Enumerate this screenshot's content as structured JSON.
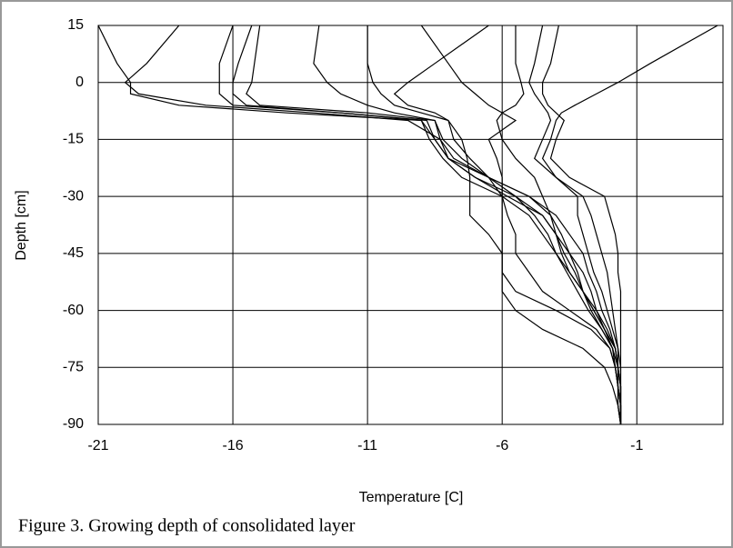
{
  "chart_data": {
    "type": "line",
    "title": "Figure 3. Growing depth of consolidated layer",
    "x_label": "Temperature [C]",
    "y_label": "Depth [cm]",
    "color": "#000000",
    "grid": true,
    "xlim": [
      -21,
      2.2
    ],
    "xticks": [
      -21,
      -16,
      -11,
      -6,
      -1
    ],
    "ylim": [
      -90,
      15
    ],
    "yticks": [
      15,
      0,
      -15,
      -30,
      -45,
      -60,
      -75,
      -90
    ],
    "depths": [
      15,
      5,
      0,
      -3,
      -6,
      -8,
      -10,
      -15,
      -20,
      -25,
      -30,
      -35,
      -40,
      -45,
      -50,
      -55,
      -60,
      -65,
      -70,
      -75,
      -80,
      -85,
      -90
    ],
    "series": [
      {
        "values": [
          -21,
          -20.3,
          -19.8,
          -19.8,
          -18,
          -14,
          -9,
          -8.5,
          -8,
          -6.5,
          -5,
          -4,
          -3.5,
          -3,
          -2.8,
          -2.5,
          -2.3,
          -2,
          -1.8,
          -1.7,
          -1.7,
          -1.6,
          -1.6
        ]
      },
      {
        "values": [
          -18,
          -19.2,
          -20,
          -19.5,
          -17,
          -13,
          -9.5,
          -8.3,
          -8,
          -7,
          -5.5,
          -4.5,
          -4,
          -3.5,
          -3,
          -2.7,
          -2.5,
          -2.2,
          -1.9,
          -1.8,
          -1.7,
          -1.7,
          -1.6
        ]
      },
      {
        "values": [
          -16,
          -16.5,
          -16.5,
          -16.5,
          -16,
          -12,
          -9,
          -8.7,
          -8.2,
          -7.5,
          -6,
          -5,
          -4.5,
          -4,
          -3.5,
          -3,
          -2.7,
          -2.3,
          -1.9,
          -1.8,
          -1.7,
          -1.6,
          -1.6
        ]
      },
      {
        "values": [
          -15.3,
          -15.8,
          -16,
          -16,
          -15.5,
          -12,
          -8.8,
          -8.5,
          -8,
          -7,
          -5.8,
          -4.5,
          -4,
          -3.7,
          -3.3,
          -3,
          -2.6,
          -2.2,
          -1.8,
          -1.7,
          -1.6,
          -1.6,
          -1.6
        ]
      },
      {
        "values": [
          -15,
          -15.2,
          -15.3,
          -15.5,
          -15,
          -11,
          -8.5,
          -8.3,
          -7.8,
          -6.5,
          -5,
          -4.2,
          -3.8,
          -3.5,
          -3.2,
          -3,
          -2.5,
          -2.1,
          -1.8,
          -1.7,
          -1.6,
          -1.6,
          -1.6
        ]
      },
      {
        "values": [
          -12.8,
          -13,
          -12.5,
          -12,
          -11,
          -10,
          -8.5,
          -8.2,
          -7.5,
          -6.5,
          -5.5,
          -4.8,
          -4.3,
          -4,
          -3.6,
          -3.2,
          -2.8,
          -2.3,
          -1.9,
          -1.7,
          -1.7,
          -1.6,
          -1.6
        ]
      },
      {
        "values": [
          -11,
          -11,
          -10.8,
          -10.5,
          -10,
          -9,
          -8,
          -7.8,
          -7.2,
          -6.5,
          -6,
          -5.8,
          -5.5,
          -5.5,
          -5,
          -4.5,
          -3.5,
          -2.5,
          -2,
          -1.8,
          -1.7,
          -1.7,
          -1.6
        ]
      },
      {
        "values": [
          -6.5,
          -8.5,
          -9.5,
          -10,
          -9.5,
          -8.5,
          -8,
          -7.5,
          -7.3,
          -7.2,
          -7.2,
          -7.2,
          -6.5,
          -6,
          -6,
          -5.5,
          -4,
          -2.7,
          -2,
          -1.8,
          -1.7,
          -1.6,
          -1.6
        ]
      },
      {
        "values": [
          -9,
          -8,
          -7.5,
          -7,
          -6.5,
          -6,
          -5.5,
          -6.5,
          -6.2,
          -6,
          -6,
          -6,
          -6,
          -6,
          -6,
          -6,
          -5.5,
          -4.5,
          -3,
          -2.2,
          -1.9,
          -1.7,
          -1.6
        ]
      },
      {
        "values": [
          -5.5,
          -5.5,
          -5.3,
          -5.2,
          -5.5,
          -6,
          -6.2,
          -6,
          -5.5,
          -4.8,
          -4.5,
          -4.2,
          -4,
          -3.8,
          -3.5,
          -3,
          -2.6,
          -2.2,
          -1.8,
          -1.7,
          -1.6,
          -1.6,
          -1.6
        ]
      },
      {
        "values": [
          -4.5,
          -4.8,
          -5,
          -4.8,
          -4.5,
          -4.3,
          -4.2,
          -4.5,
          -4.8,
          -4,
          -3.2,
          -3.2,
          -3,
          -2.8,
          -2.6,
          -2.3,
          -2.1,
          -1.9,
          -1.7,
          -1.7,
          -1.6,
          -1.6,
          -1.6
        ]
      },
      {
        "values": [
          -3.9,
          -4.2,
          -4.5,
          -4.5,
          -4.3,
          -4,
          -3.7,
          -4,
          -4.2,
          -3.5,
          -2.2,
          -2,
          -1.8,
          -1.7,
          -1.7,
          -1.6,
          -1.6,
          -1.6,
          -1.6,
          -1.6,
          -1.6,
          -1.6,
          -1.6
        ]
      },
      {
        "values": [
          2,
          -0.5,
          -1.7,
          -2.5,
          -3.3,
          -3.8,
          -4,
          -4.2,
          -4.5,
          -4,
          -3,
          -2.7,
          -2.5,
          -2.3,
          -2.1,
          -2,
          -1.9,
          -1.8,
          -1.7,
          -1.6,
          -1.6,
          -1.6,
          -1.6
        ]
      }
    ]
  }
}
